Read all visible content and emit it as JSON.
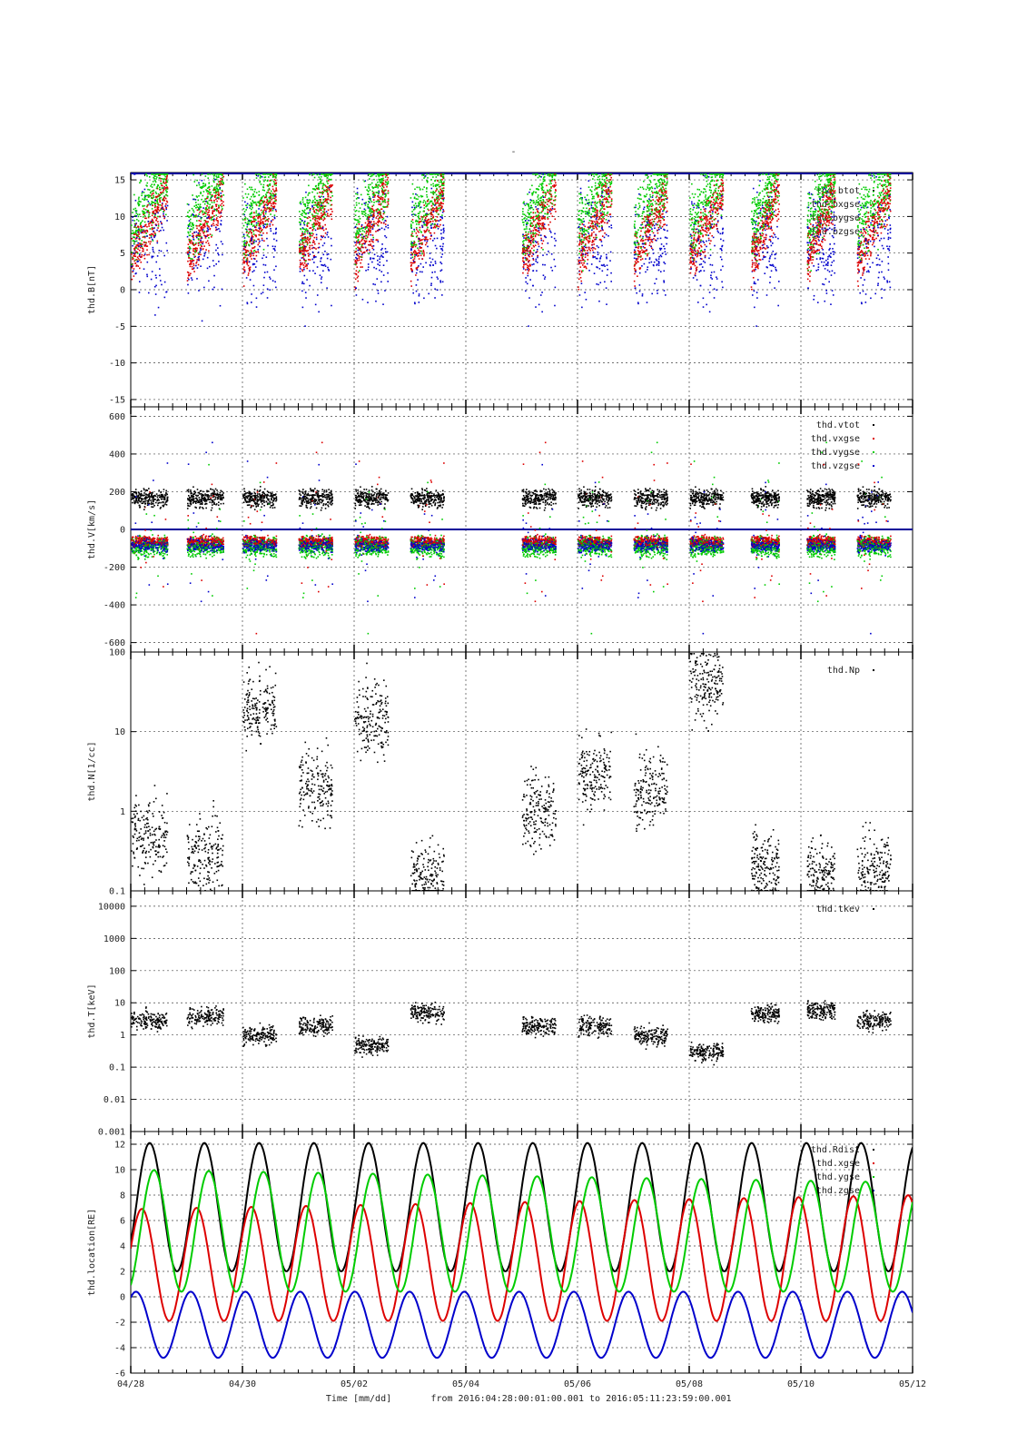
{
  "page": {
    "title": "-",
    "footer_time_label": "Time [mm/dd]",
    "footer_range": "from 2016:04:28:00:01:00.001  to  2016:05:11:23:59:00.001"
  },
  "colors": {
    "red": "#dd0000",
    "green": "#00cc00",
    "blue": "#0000cc",
    "black": "#000000",
    "navy": "#000099",
    "grid": "#444444"
  },
  "x_axis": {
    "unit": "days since 2016-04-28",
    "range": [
      0,
      14
    ],
    "ticks": [
      {
        "day": 0,
        "label": "04/28"
      },
      {
        "day": 2,
        "label": "04/30"
      },
      {
        "day": 4,
        "label": "05/02"
      },
      {
        "day": 6,
        "label": "05/04"
      },
      {
        "day": 8,
        "label": "05/06"
      },
      {
        "day": 10,
        "label": "05/08"
      },
      {
        "day": 12,
        "label": "05/10"
      },
      {
        "day": 14,
        "label": "05/12"
      }
    ]
  },
  "chart_data": [
    {
      "type": "scatter",
      "panel": "magnetic-field",
      "ylabel": "thd.B[nT]",
      "ylim": [
        -16,
        16
      ],
      "log": false,
      "yticks": [
        -15,
        -10,
        -5,
        0,
        5,
        10,
        15
      ],
      "grid": true,
      "legend_position": "top-right",
      "series": [
        {
          "name": "thd.btot",
          "color": "#000000"
        },
        {
          "name": "thd.bxgse",
          "color": "#dd0000"
        },
        {
          "name": "thd.bygse",
          "color": "#00cc00"
        },
        {
          "name": "thd.bzgse",
          "color": "#0000cc"
        }
      ],
      "saturation_line": {
        "value": 16,
        "color": "#000099"
      }
    },
    {
      "type": "scatter",
      "panel": "velocity",
      "ylabel": "thd.V[km/s]",
      "ylim": [
        -650,
        650
      ],
      "log": false,
      "yticks": [
        -600,
        -400,
        -200,
        0,
        200,
        400,
        600
      ],
      "grid": true,
      "legend_position": "top-right",
      "series": [
        {
          "name": "thd.vtot",
          "color": "#000000"
        },
        {
          "name": "thd.vxgse",
          "color": "#dd0000"
        },
        {
          "name": "thd.vygse",
          "color": "#00cc00"
        },
        {
          "name": "thd.vzgse",
          "color": "#0000cc"
        }
      ],
      "zero_line": {
        "value": 0,
        "color": "#000099"
      }
    },
    {
      "type": "scatter",
      "panel": "density",
      "ylabel": "thd.N[1/cc]",
      "ylim": [
        0.1,
        100
      ],
      "log": true,
      "yticks": [
        0.1,
        1,
        10,
        100
      ],
      "ytick_labels": [
        "0.1",
        "1",
        "10",
        "100"
      ],
      "grid": true,
      "legend_position": "top-right",
      "series": [
        {
          "name": "thd.Np",
          "color": "#000000"
        }
      ]
    },
    {
      "type": "scatter",
      "panel": "temperature",
      "ylabel": "thd.T[keV]",
      "ylim": [
        0.001,
        30000
      ],
      "log": true,
      "yticks": [
        0.001,
        0.01,
        0.1,
        1,
        10,
        100,
        1000,
        10000
      ],
      "ytick_labels": [
        "0.001",
        "0.01",
        "0.1",
        "1",
        "10",
        "100",
        "1000",
        "10000"
      ],
      "grid": true,
      "legend_position": "top-right",
      "series": [
        {
          "name": "thd.tkev",
          "color": "#000000"
        }
      ]
    },
    {
      "type": "line",
      "panel": "location",
      "ylabel": "thd.location[RE]",
      "ylim": [
        -6,
        13
      ],
      "log": false,
      "yticks": [
        -6,
        -4,
        -2,
        0,
        2,
        4,
        6,
        8,
        10,
        12
      ],
      "grid": true,
      "legend_position": "top-right",
      "orbit_period_days": 0.98,
      "series": [
        {
          "name": "thd.Rdist",
          "color": "#000000",
          "min": 2,
          "max": 12.1
        },
        {
          "name": "thd.xgse",
          "color": "#dd0000",
          "min": -1.9,
          "max_start": 6.9,
          "max_end": 8.0
        },
        {
          "name": "thd.ygse",
          "color": "#00cc00",
          "min": 0.4,
          "max_start": 10.0,
          "max_end": 9.0
        },
        {
          "name": "thd.zgse",
          "color": "#0000cc",
          "min": -4.8,
          "max": 0.4
        }
      ]
    }
  ]
}
